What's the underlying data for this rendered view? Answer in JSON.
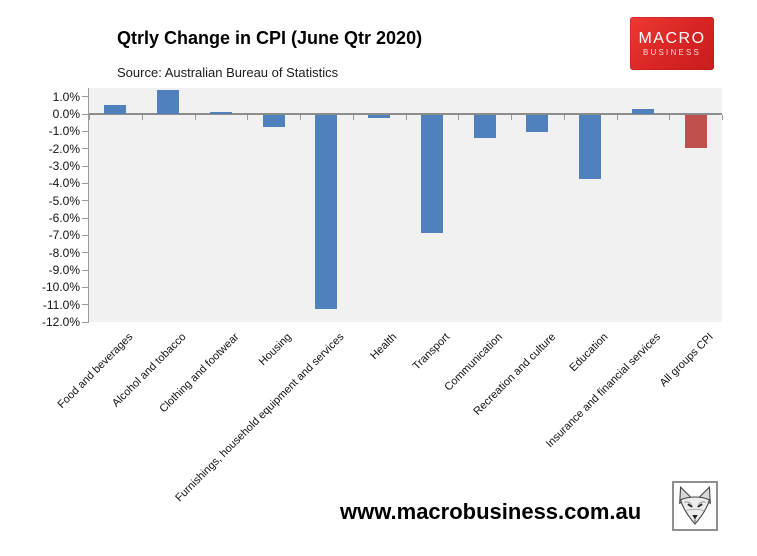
{
  "header": {
    "logo": {
      "line1": "MACRO",
      "line2": "BUSINESS"
    }
  },
  "footer": {
    "url": "www.macrobusiness.com.au"
  },
  "colors": {
    "bar_blue": "#4f81bd",
    "bar_red": "#c0504d",
    "plot_bg": "#f1f1f1",
    "axis_gray": "#9a9a9a",
    "logo_red": "#d82424"
  },
  "chart_data": {
    "type": "bar",
    "title": "Qtrly Change in CPI (June Qtr 2020)",
    "source": "Source: Australian Bureau of Statistics",
    "categories": [
      "Food and beverages",
      "Alcohol and tobacco",
      "Clothing and footwear",
      "Housing",
      "Furnishings, household equipment and services",
      "Health",
      "Transport",
      "Communication",
      "Recreation and culture",
      "Education",
      "Insurance and financial services",
      "All groups CPI"
    ],
    "values": [
      0.5,
      1.4,
      0.1,
      -0.7,
      -11.2,
      -0.2,
      -6.8,
      -1.3,
      -1.0,
      -3.7,
      0.3,
      -1.9
    ],
    "bar_colors": [
      "#4f81bd",
      "#4f81bd",
      "#4f81bd",
      "#4f81bd",
      "#4f81bd",
      "#4f81bd",
      "#4f81bd",
      "#4f81bd",
      "#4f81bd",
      "#4f81bd",
      "#4f81bd",
      "#c0504d"
    ],
    "y_ticks": [
      "1.0%",
      "0.0%",
      "-1.0%",
      "-2.0%",
      "-3.0%",
      "-4.0%",
      "-5.0%",
      "-6.0%",
      "-7.0%",
      "-8.0%",
      "-9.0%",
      "-10.0%",
      "-11.0%",
      "-12.0%"
    ],
    "ylim": [
      -12,
      1.5
    ],
    "xlabel": "",
    "ylabel": "",
    "grid": false,
    "legend": false
  }
}
